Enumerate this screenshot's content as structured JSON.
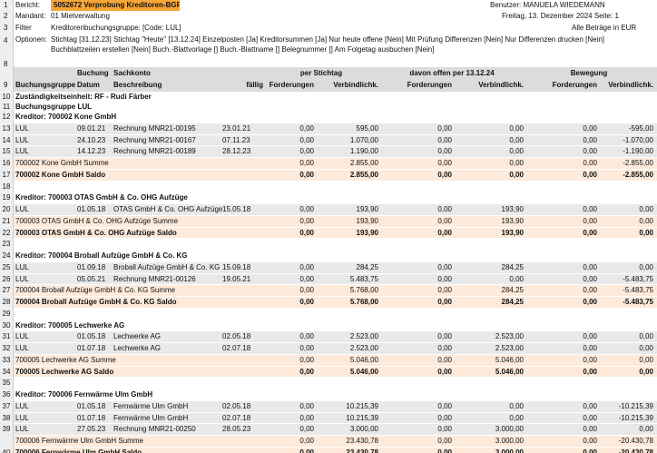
{
  "header": {
    "nums": [
      1,
      2,
      3,
      4,
      8,
      9
    ],
    "report_label": "Bericht:",
    "report": "5052672 Verprobung Kreditoren-BGR",
    "user": "Benutzer: MANUELA WIEDEMANN",
    "client_label": "Mandant:",
    "client": "01 Mietverwaltung",
    "date": "Freitag, 13. Dezember 2024 Seite: 1",
    "filter_label": "Filter",
    "filter": "Kreditorenbuchungsgruppe: [Code: LUL]",
    "currency": "Alle Beträge in EUR",
    "options_label": "Optionen:",
    "options": "Stichtag [31.12.23] Stichtag \"Heute\" [13.12.24] Einzelposten [Ja] Kreditorsummen [Ja] Nur heute offene [Nein] Mit Prüfung Differenzen [Nein] Nur Differenzen drucken [Nein] Buchblattzeilen erstellen [Nein] Buch.-Blattvorlage [] Buch.-Blattname [] Belegnummer [] Am Folgetag ausbuchen [Nein]"
  },
  "columns": {
    "group_row": [
      "Buchung",
      "Sachkonto",
      "per Stichtag",
      "davon offen per 13.12.24",
      "Bewegung"
    ],
    "names": [
      "Buchungsgruppe",
      "Datum",
      "Beschreibung",
      "fällig",
      "Forderungen",
      "Verbindlichk.",
      "Forderungen",
      "Verbindlichk.",
      "Forderungen",
      "Verbindlichk."
    ]
  },
  "rows": [
    {
      "num": 10,
      "kind": "group",
      "cells": [
        "Zuständigkeitseinheit: RF - Rudi Färber"
      ]
    },
    {
      "num": 11,
      "kind": "group",
      "cells": [
        "Buchungsgruppe LUL"
      ]
    },
    {
      "num": 12,
      "kind": "group",
      "cells": [
        "Kreditor: 700002 Kone GmbH"
      ]
    },
    {
      "num": 13,
      "kind": "entry",
      "cells": [
        "LUL",
        "09.01.21",
        "Rechnung MNR21-00195",
        "23.01.21",
        "0,00",
        "595,00",
        "0,00",
        "0,00",
        "0,00",
        "-595,00"
      ]
    },
    {
      "num": 14,
      "kind": "entry",
      "cells": [
        "LUL",
        "24.10.23",
        "Rechnung MNR21-00167",
        "07.11.23",
        "0,00",
        "1.070,00",
        "0,00",
        "0,00",
        "0,00",
        "-1.070,00"
      ]
    },
    {
      "num": 15,
      "kind": "entry",
      "cells": [
        "LUL",
        "14.12.23",
        "Rechnung MNR21-00189",
        "28.12.23",
        "0,00",
        "1.190,00",
        "0,00",
        "0,00",
        "0,00",
        "-1.190,00"
      ]
    },
    {
      "num": 16,
      "kind": "sum",
      "cells": [
        "700002 Kone GmbH Summe",
        "0,00",
        "2.855,00",
        "0,00",
        "0,00",
        "0,00",
        "-2.855,00"
      ]
    },
    {
      "num": 17,
      "kind": "saldo",
      "cells": [
        "700002 Kone GmbH Saldo",
        "0,00",
        "2.855,00",
        "0,00",
        "0,00",
        "0,00",
        "-2.855,00"
      ]
    },
    {
      "num": 18,
      "kind": "blank",
      "cells": []
    },
    {
      "num": 19,
      "kind": "group",
      "cells": [
        "Kreditor: 700003 OTAS GmbH & Co. OHG Aufzüge"
      ]
    },
    {
      "num": 20,
      "kind": "entry",
      "cells": [
        "LUL",
        "01.05.18",
        "OTAS GmbH & Co. OHG Aufzüge",
        "15.05.18",
        "0,00",
        "193,90",
        "0,00",
        "193,90",
        "0,00",
        "0,00"
      ]
    },
    {
      "num": 21,
      "kind": "sum",
      "cells": [
        "700003 OTAS GmbH & Co. OHG Aufzüge Summe",
        "0,00",
        "193,90",
        "0,00",
        "193,90",
        "0,00",
        "0,00"
      ]
    },
    {
      "num": 22,
      "kind": "saldo",
      "cells": [
        "700003 OTAS GmbH & Co. OHG Aufzüge Saldo",
        "0,00",
        "193,90",
        "0,00",
        "193,90",
        "0,00",
        "0,00"
      ]
    },
    {
      "num": 23,
      "kind": "blank",
      "cells": []
    },
    {
      "num": 24,
      "kind": "group",
      "cells": [
        "Kreditor: 700004 Broball Aufzüge GmbH & Co. KG"
      ]
    },
    {
      "num": 25,
      "kind": "entry",
      "cells": [
        "LUL",
        "01.09.18",
        "Broball Aufzüge GmbH & Co. KG",
        "15.09.18",
        "0,00",
        "284,25",
        "0,00",
        "284,25",
        "0,00",
        "0,00"
      ]
    },
    {
      "num": 26,
      "kind": "entry",
      "cells": [
        "LUL",
        "05.05.21",
        "Rechnung MNR21-00126",
        "19.05.21",
        "0,00",
        "5.483,75",
        "0,00",
        "0,00",
        "0,00",
        "-5.483,75"
      ]
    },
    {
      "num": 27,
      "kind": "sum",
      "cells": [
        "700004 Broball Aufzüge GmbH & Co. KG Summe",
        "0,00",
        "5.768,00",
        "0,00",
        "284,25",
        "0,00",
        "-5.483,75"
      ]
    },
    {
      "num": 28,
      "kind": "saldo",
      "cells": [
        "700004 Broball Aufzüge GmbH & Co. KG Saldo",
        "0,00",
        "5.768,00",
        "0,00",
        "284,25",
        "0,00",
        "-5.483,75"
      ]
    },
    {
      "num": 29,
      "kind": "blank",
      "cells": []
    },
    {
      "num": 30,
      "kind": "group",
      "cells": [
        "Kreditor: 700005 Lechwerke AG"
      ]
    },
    {
      "num": 31,
      "kind": "entry",
      "cells": [
        "LUL",
        "01.05.18",
        "Lechwerke AG",
        "02.05.18",
        "0,00",
        "2.523,00",
        "0,00",
        "2.523,00",
        "0,00",
        "0,00"
      ]
    },
    {
      "num": 32,
      "kind": "entry",
      "cells": [
        "LUL",
        "01.07.18",
        "Lechwerke AG",
        "02.07.18",
        "0,00",
        "2.523,00",
        "0,00",
        "2.523,00",
        "0,00",
        "0,00"
      ]
    },
    {
      "num": 33,
      "kind": "sum",
      "cells": [
        "700005 Lechwerke AG Summe",
        "0,00",
        "5.046,00",
        "0,00",
        "5.046,00",
        "0,00",
        "0,00"
      ]
    },
    {
      "num": 34,
      "kind": "saldo",
      "cells": [
        "700005 Lechwerke AG Saldo",
        "0,00",
        "5.046,00",
        "0,00",
        "5.046,00",
        "0,00",
        "0,00"
      ]
    },
    {
      "num": 35,
      "kind": "blank",
      "cells": []
    },
    {
      "num": 36,
      "kind": "group",
      "cells": [
        "Kreditor: 700006 Fernwärme Ulm GmbH"
      ]
    },
    {
      "num": 37,
      "kind": "entry",
      "cells": [
        "LUL",
        "01.05.18",
        "Fernwärme Ulm GmbH",
        "02.05.18",
        "0,00",
        "10.215,39",
        "0,00",
        "0,00",
        "0,00",
        "-10.215,39"
      ]
    },
    {
      "num": 38,
      "kind": "entry",
      "cells": [
        "LUL",
        "01.07.18",
        "Fernwärme Ulm GmbH",
        "02.07.18",
        "0,00",
        "10.215,39",
        "0,00",
        "0,00",
        "0,00",
        "-10.215,39"
      ]
    },
    {
      "num": 39,
      "kind": "entry",
      "cells": [
        "LUL",
        "27.05.23",
        "Rechnung MNR21-00250",
        "28.05.23",
        "0,00",
        "3.000,00",
        "0,00",
        "3.000,00",
        "0,00",
        "0,00"
      ]
    },
    {
      "kind": "sum",
      "cells": [
        "700006 Fernwärme Ulm GmbH Summe",
        "0,00",
        "23.430,78",
        "0,00",
        "3.000,00",
        "0,00",
        "-20.430,78"
      ]
    },
    {
      "num": 40,
      "kind": "saldo",
      "cells": [
        "700006 Fernwärme Ulm GmbH Saldo",
        "0,00",
        "23.430,78",
        "0,00",
        "3.000,00",
        "0,00",
        "-20.430,78"
      ]
    }
  ]
}
